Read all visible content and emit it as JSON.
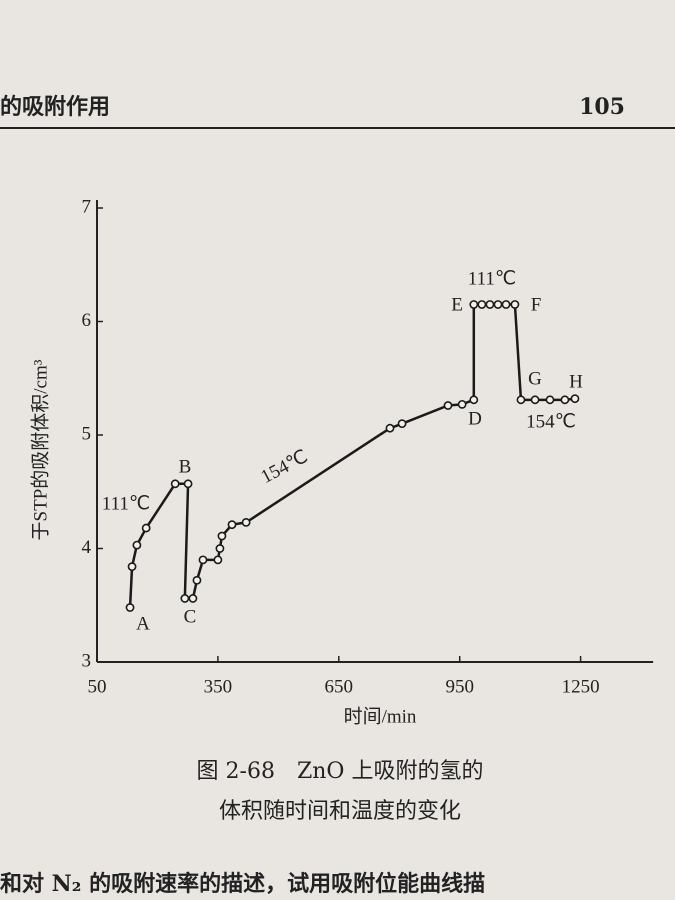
{
  "header": {
    "title": "的吸附作用",
    "page": "105"
  },
  "chart_data": {
    "type": "line",
    "x": [
      132,
      137,
      149,
      172,
      244,
      276,
      268,
      288,
      298,
      313,
      350,
      355,
      360,
      385,
      420,
      777,
      807,
      921,
      956,
      985,
      985,
      1005,
      1025,
      1045,
      1065,
      1087,
      1102,
      1137,
      1174,
      1211,
      1236
    ],
    "values": [
      3.48,
      3.84,
      4.03,
      4.18,
      4.57,
      4.57,
      3.56,
      3.56,
      3.72,
      3.9,
      3.9,
      4.0,
      4.11,
      4.21,
      4.23,
      5.06,
      5.1,
      5.26,
      5.27,
      5.31,
      6.15,
      6.15,
      6.15,
      6.15,
      6.15,
      6.15,
      5.31,
      5.31,
      5.31,
      5.31,
      5.32
    ],
    "color": "#1a1a1a",
    "xlim": [
      50,
      1430
    ],
    "ylim": [
      3,
      7
    ],
    "xticks": [
      50,
      350,
      650,
      950,
      1250
    ],
    "yticks": [
      3,
      4,
      5,
      6,
      7
    ],
    "xlabel": "时间/min",
    "ylabel": "于STP的吸附体积/cm³",
    "annotations": [
      "A",
      "B",
      "C",
      "D",
      "E",
      "F",
      "G",
      "H",
      "111℃",
      "111℃",
      "154℃",
      "154℃"
    ]
  },
  "caption": [
    "图 2-68　ZnO 上吸附的氢的",
    "体积随时间和温度的变化"
  ],
  "footer": "和对 N₂ 的吸附速率的描述，试用吸附位能曲线描"
}
